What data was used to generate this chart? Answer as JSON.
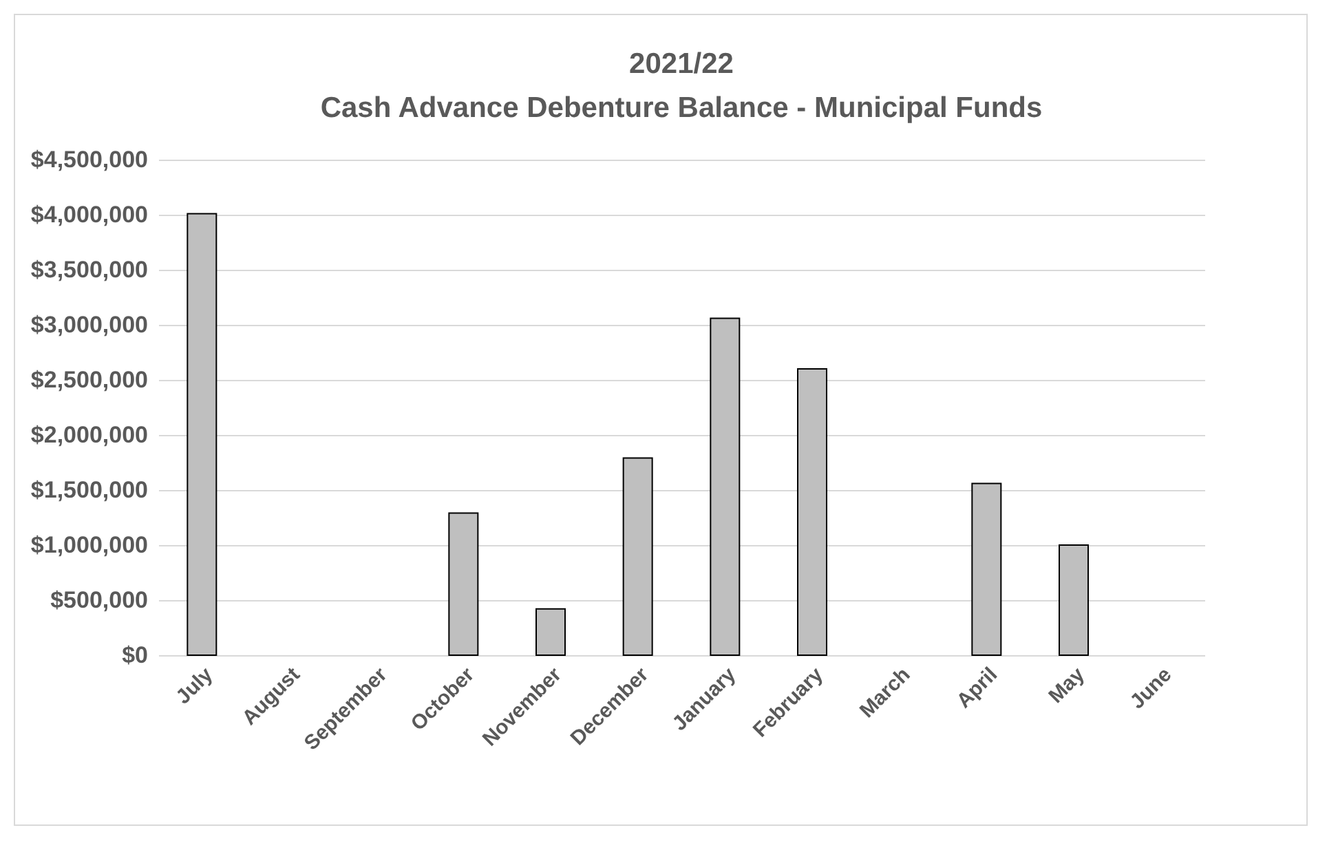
{
  "chart_data": {
    "type": "bar",
    "title": [
      "2021/22",
      "Cash Advance Debenture Balance - Municipal Funds"
    ],
    "categories": [
      "July",
      "August",
      "September",
      "October",
      "November",
      "December",
      "January",
      "February",
      "March",
      "April",
      "May",
      "June"
    ],
    "values": [
      4010000,
      0,
      0,
      1290000,
      420000,
      1790000,
      3060000,
      2600000,
      0,
      1560000,
      1000000,
      0
    ],
    "color": "#bfbfbf",
    "ylim": [
      0,
      4500000
    ],
    "yticks": [
      {
        "value": 0,
        "label": "$0"
      },
      {
        "value": 500000,
        "label": "$500,000"
      },
      {
        "value": 1000000,
        "label": "$1,000,000"
      },
      {
        "value": 1500000,
        "label": "$1,500,000"
      },
      {
        "value": 2000000,
        "label": "$2,000,000"
      },
      {
        "value": 2500000,
        "label": "$2,500,000"
      },
      {
        "value": 3000000,
        "label": "$3,000,000"
      },
      {
        "value": 3500000,
        "label": "$3,500,000"
      },
      {
        "value": 4000000,
        "label": "$4,000,000"
      },
      {
        "value": 4500000,
        "label": "$4,500,000"
      }
    ],
    "grid": "y"
  }
}
